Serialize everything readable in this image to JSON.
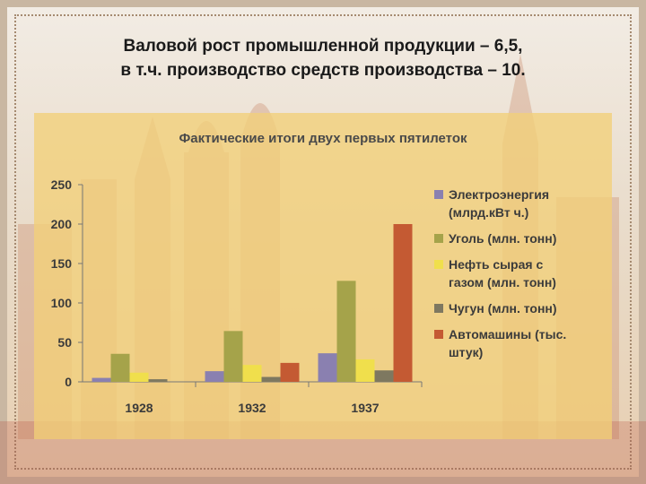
{
  "slide": {
    "title_line1": "Валовой рост промышленной продукции – 6,5,",
    "title_line2": "в т.ч. производство средств производства – 10."
  },
  "chart_data": {
    "type": "bar",
    "title": "Фактические итоги двух первых пятилеток",
    "categories": [
      "1928",
      "1932",
      "1937"
    ],
    "ylim": [
      0,
      250
    ],
    "yticks": [
      0,
      50,
      100,
      150,
      200,
      250
    ],
    "grid": false,
    "legend_position": "right",
    "series": [
      {
        "name": "Электроэнергия\n(млрд.кВт ч.)",
        "color": "#8a80b0",
        "values": [
          5,
          13.5,
          36.2
        ]
      },
      {
        "name": "Уголь (млн. тонн)",
        "color": "#a5a34a",
        "values": [
          35.5,
          64.4,
          128
        ]
      },
      {
        "name": "Нефть сырая с\nгазом (млн. тонн)",
        "color": "#f0df4c",
        "values": [
          11.6,
          21.4,
          28.5
        ]
      },
      {
        "name": "Чугун (млн. тонн)",
        "color": "#7e7860",
        "values": [
          3.3,
          6.2,
          14.5
        ]
      },
      {
        "name": "Автомашины (тыс.\nштук)",
        "color": "#c45a33",
        "values": [
          0,
          24,
          200
        ]
      }
    ]
  }
}
